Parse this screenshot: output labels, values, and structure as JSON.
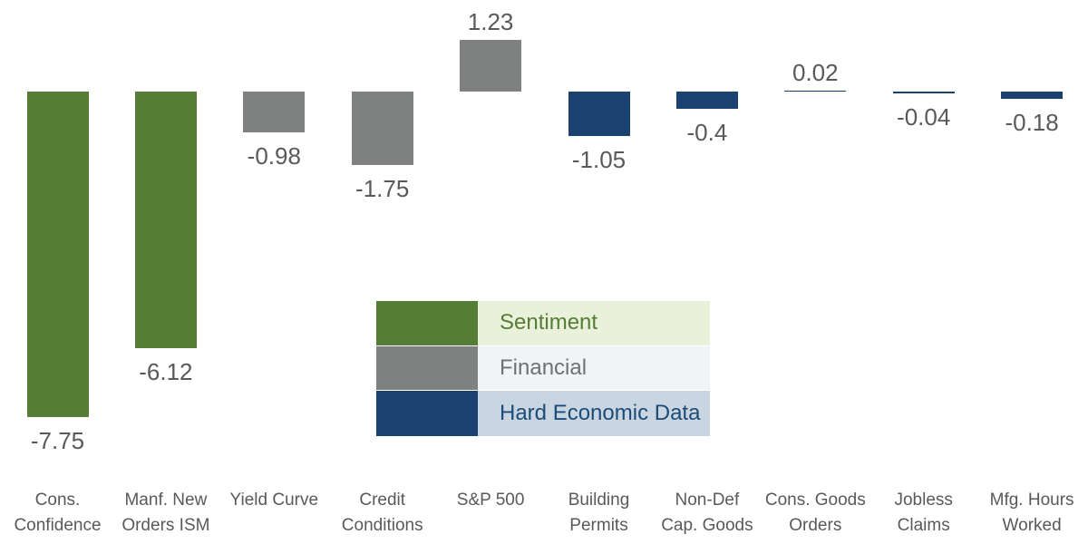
{
  "chart_data": {
    "type": "bar",
    "title": "",
    "xlabel": "",
    "ylabel": "",
    "ylim": [
      -8.5,
      1.6
    ],
    "grid": false,
    "axes_visible": false,
    "legend_position": "center-middle",
    "categories": [
      "Cons. Confidence",
      "Manf. New Orders ISM",
      "Yield Curve",
      "Credit Conditions",
      "S&P 500",
      "Building Permits",
      "Non-Def Cap. Goods",
      "Cons. Goods Orders",
      "Jobless Claims",
      "Mfg. Hours Worked"
    ],
    "categories_display": [
      "Cons.\nConfidence",
      "Manf. New\nOrders ISM",
      "Yield Curve",
      "Credit\nConditions",
      "S&P 500",
      "Building\nPermits",
      "Non-Def\nCap. Goods",
      "Cons. Goods\nOrders",
      "Jobless\nClaims",
      "Mfg. Hours\nWorked"
    ],
    "values": [
      -7.75,
      -6.12,
      -0.98,
      -1.75,
      1.23,
      -1.05,
      -0.4,
      0.02,
      -0.04,
      -0.18
    ],
    "value_labels": [
      "-7.75",
      "-6.12",
      "-0.98",
      "-1.75",
      "1.23",
      "-1.05",
      "-0.4",
      "0.02",
      "-0.04",
      "-0.18"
    ],
    "groups": [
      "Sentiment",
      "Sentiment",
      "Financial",
      "Financial",
      "Financial",
      "Hard Economic Data",
      "Hard Economic Data",
      "Hard Economic Data",
      "Hard Economic Data",
      "Hard Economic Data"
    ],
    "group_colors": {
      "Sentiment": "#557d36",
      "Financial": "#7f8180",
      "Hard Economic Data": "#1a4170"
    }
  },
  "legend": {
    "items": [
      {
        "label": "Sentiment",
        "swatch_color": "#557d36",
        "bg_color": "#eaf1da",
        "text_color": "#567d38"
      },
      {
        "label": "Financial",
        "swatch_color": "#7f8180",
        "bg_color": "#f1f4f6",
        "text_color": "#6e7170"
      },
      {
        "label": "Hard Economic Data",
        "swatch_color": "#1a4170",
        "bg_color": "#c9d6e2",
        "text_color": "#1d4b78"
      }
    ]
  },
  "style": {
    "value_label_color": "#595959",
    "category_label_color": "#595959",
    "background": "#ffffff"
  }
}
